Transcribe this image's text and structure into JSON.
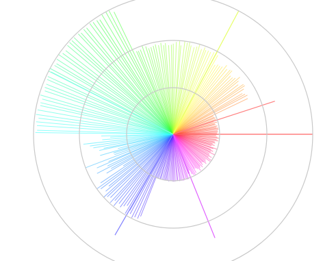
{
  "diagram": {
    "type": "radial-burst",
    "ring_color": "#c8c8c8",
    "rings": [
      {
        "name": "inner-ring",
        "level": 1
      },
      {
        "name": "middle-ring",
        "level": 2
      },
      {
        "name": "outer-ring",
        "level": 3
      }
    ],
    "ray_count": 220,
    "long_rays": [
      {
        "angle_deg": -62,
        "level": 3,
        "color": "#e6ff66"
      },
      {
        "angle_deg": -18,
        "level": 2.3,
        "color": "#ff8080"
      },
      {
        "angle_deg": 0,
        "level": 3,
        "color": "#ff6666"
      },
      {
        "angle_deg": 68,
        "level": 2.4,
        "color": "#e060ff"
      },
      {
        "angle_deg": 120,
        "level": 2.5,
        "color": "#8080ff"
      },
      {
        "angle_deg": 207,
        "level": 2.95,
        "color": "#80ffe6"
      }
    ]
  }
}
